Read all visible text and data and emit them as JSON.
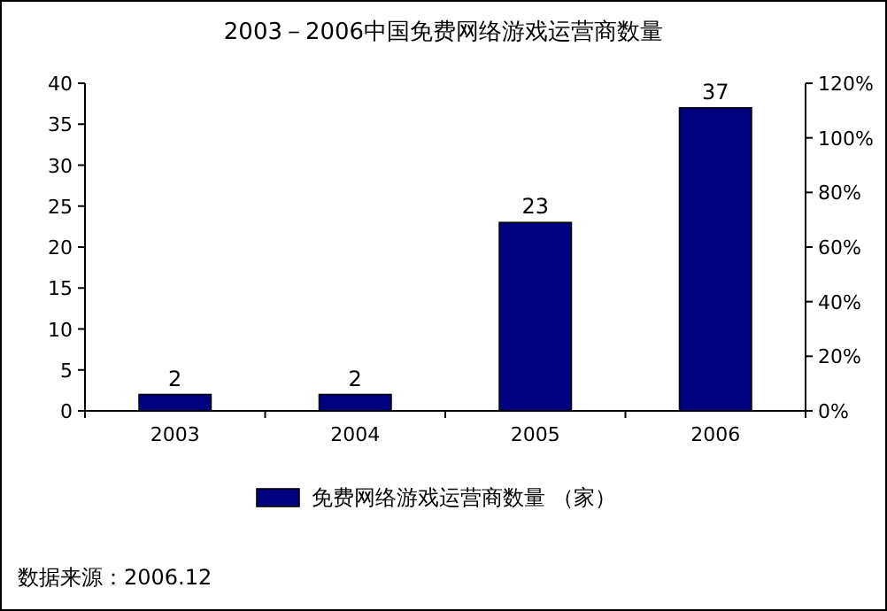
{
  "chart_data": {
    "type": "bar",
    "title": "2003－2006中国免费网络游戏运营商数量",
    "categories": [
      "2003",
      "2004",
      "2005",
      "2006"
    ],
    "series": [
      {
        "name": "免费网络游戏运营商数量 （家）",
        "color": "#000080",
        "values": [
          2,
          2,
          23,
          37
        ]
      }
    ],
    "ylim": [
      0,
      40
    ],
    "yticks": [
      0,
      5,
      10,
      15,
      20,
      25,
      30,
      35,
      40
    ],
    "y2lim": [
      0,
      1.2
    ],
    "y2ticks": [
      {
        "value": 0,
        "label": "0%"
      },
      {
        "value": 0.2,
        "label": "20%"
      },
      {
        "value": 0.4,
        "label": "40%"
      },
      {
        "value": 0.6,
        "label": "60%"
      },
      {
        "value": 0.8,
        "label": "80%"
      },
      {
        "value": 1.0,
        "label": "100%"
      },
      {
        "value": 1.2,
        "label": "120%"
      }
    ],
    "data_labels": true,
    "legend": "bottom",
    "grid": false,
    "annotations": [
      "数据来源：2006.12"
    ]
  }
}
